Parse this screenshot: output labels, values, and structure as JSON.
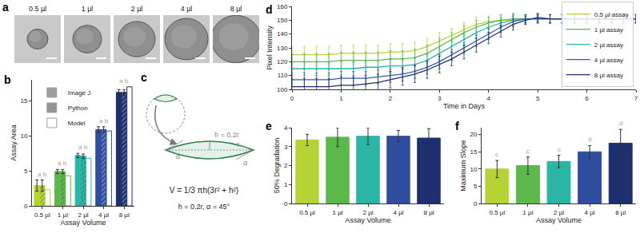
{
  "images": {
    "title": "a",
    "labels": [
      "0.5 µl",
      "1 µl",
      "2 µl",
      "4 µl",
      "8 µl"
    ]
  },
  "diagram": {
    "title": "c",
    "labels": {
      "height": "h = 0.2r",
      "radius": "r",
      "angle": "α"
    },
    "formula": "V = 1/3 πh(3r² + h²)",
    "caption": "h = 0.2r, α = 45°"
  },
  "chart_data": [
    {
      "title": "b",
      "type": "bar",
      "categories": [
        "0.5 µl",
        "1 µl",
        "2 µl",
        "4 µl",
        "8 µl"
      ],
      "series": [
        {
          "name": "Image J",
          "color": "#9e9e9e",
          "colors": [
            "#b5d334",
            "#5cb84a",
            "#2ab5a5",
            "#2f4e9e",
            "#1c2f6e"
          ],
          "values": [
            2.9,
            4.9,
            7.2,
            10.9,
            16.2
          ],
          "errors": [
            0.8,
            0.3,
            0.3,
            0.4,
            0.4
          ]
        },
        {
          "name": "Python",
          "color": "#9e9e9e",
          "marker": "hatched",
          "colors": [
            "#b5d334",
            "#5cb84a",
            "#2ab5a5",
            "#2f4e9e",
            "#1c2f6e"
          ],
          "values": [
            2.9,
            4.9,
            7.1,
            10.9,
            16.2
          ],
          "errors": [
            0.8,
            0.3,
            0.3,
            0.4,
            0.4
          ]
        },
        {
          "name": "Model",
          "color": "#9e9e9e",
          "marker": "outline",
          "colors": [
            "#b5d334",
            "#5cb84a",
            "#2ab5a5",
            "#2f4e9e",
            "#1c2f6e"
          ],
          "values": [
            2.3,
            4.3,
            6.8,
            10.7,
            17.0
          ]
        }
      ],
      "annotations": [
        "a b",
        "a b",
        "a b",
        "a b",
        "a b"
      ],
      "x_label": "Assay Volume",
      "y_label": "Assay Area",
      "ylim": [
        0,
        18
      ],
      "yticks": [
        0,
        5,
        10,
        15
      ],
      "legend": "upper left"
    },
    {
      "title": "d",
      "type": "line",
      "x": [
        0,
        0.25,
        0.5,
        0.75,
        1,
        1.25,
        1.5,
        1.75,
        2,
        2.25,
        2.5,
        2.75,
        3,
        3.25,
        3.5,
        3.75,
        4,
        4.25,
        4.5,
        4.75,
        5,
        5.25,
        5.5,
        5.75,
        6,
        6.25,
        6.5,
        6.75,
        7
      ],
      "series": [
        {
          "name": "0.5 µl assay",
          "color": "#b5d334",
          "values": [
            125,
            125,
            125,
            125,
            126,
            126,
            126,
            126,
            127,
            127,
            128,
            131,
            135,
            139,
            143,
            147,
            149,
            150,
            150,
            151,
            151,
            151,
            151,
            151,
            151,
            151,
            151,
            151,
            151
          ],
          "errors": [
            6,
            6,
            6,
            6,
            6,
            6,
            6,
            6,
            6,
            6,
            6,
            6,
            6,
            5,
            5,
            5,
            4,
            4,
            4,
            3,
            3,
            3,
            3,
            3,
            3,
            3,
            3,
            3,
            3
          ]
        },
        {
          "name": "1 µl assay",
          "color": "#5cb84a",
          "values": [
            120,
            120,
            120,
            120,
            121,
            121,
            121,
            121,
            122,
            122,
            123,
            126,
            131,
            136,
            141,
            145,
            148,
            150,
            151,
            151,
            151,
            151,
            151,
            151,
            151,
            151,
            151,
            151,
            151
          ],
          "errors": [
            6,
            6,
            6,
            6,
            6,
            6,
            6,
            6,
            6,
            6,
            6,
            6,
            6,
            5,
            5,
            5,
            4,
            4,
            4,
            3,
            3,
            3,
            3,
            3,
            3,
            3,
            3,
            3,
            3
          ]
        },
        {
          "name": "2 µl assay",
          "color": "#2ab5a5",
          "values": [
            115,
            115,
            115,
            115,
            115,
            115,
            116,
            116,
            117,
            117,
            118,
            121,
            126,
            131,
            136,
            141,
            145,
            148,
            150,
            151,
            151,
            151,
            151,
            151,
            151,
            151,
            151,
            151,
            151
          ],
          "errors": [
            5,
            5,
            5,
            5,
            5,
            5,
            5,
            5,
            5,
            5,
            5,
            5,
            5,
            4,
            4,
            4,
            4,
            4,
            4,
            3,
            3,
            3,
            3,
            3,
            3,
            3,
            3,
            3,
            3
          ]
        },
        {
          "name": "4 µl assay",
          "color": "#3a5ca8",
          "values": [
            107,
            107,
            107,
            107,
            108,
            108,
            108,
            109,
            110,
            111,
            113,
            116,
            120,
            125,
            130,
            135,
            140,
            145,
            149,
            151,
            151,
            151,
            151,
            151,
            151,
            151,
            151,
            151,
            151
          ],
          "errors": [
            5,
            5,
            5,
            5,
            5,
            5,
            5,
            5,
            5,
            5,
            5,
            5,
            5,
            4,
            4,
            4,
            4,
            4,
            4,
            3,
            3,
            3,
            3,
            3,
            3,
            3,
            3,
            3,
            3
          ]
        },
        {
          "name": "8 µl assay",
          "color": "#1c2f6e",
          "values": [
            102,
            102,
            102,
            102,
            103,
            103,
            104,
            105,
            107,
            109,
            111,
            114,
            118,
            122,
            127,
            132,
            137,
            142,
            147,
            150,
            152,
            151,
            151,
            151,
            151,
            151,
            151,
            151,
            151
          ],
          "errors": [
            6,
            6,
            6,
            6,
            6,
            6,
            6,
            6,
            6,
            6,
            6,
            6,
            6,
            5,
            5,
            5,
            4,
            4,
            4,
            3,
            3,
            3,
            3,
            3,
            3,
            3,
            3,
            3,
            3
          ]
        }
      ],
      "x_label": "Time in Days",
      "y_label": "Pixel Intensity",
      "xlim": [
        0,
        7
      ],
      "xticks": [
        0,
        1,
        2,
        3,
        4,
        5,
        6,
        7
      ],
      "ylim": [
        100,
        160
      ],
      "yticks": [
        100,
        110,
        120,
        130,
        140,
        150,
        160
      ],
      "legend": "lower right"
    },
    {
      "title": "e",
      "type": "bar",
      "categories": [
        "0.5 µl",
        "1 µl",
        "2 µl",
        "4 µl",
        "8 µl"
      ],
      "values": [
        3.35,
        3.5,
        3.55,
        3.55,
        3.45
      ],
      "errors": [
        0.3,
        0.5,
        0.45,
        0.3,
        0.5
      ],
      "colors": [
        "#b5d334",
        "#5cb84a",
        "#2ab5a5",
        "#2f4e9e",
        "#1c2f6e"
      ],
      "x_label": "Assay Volume",
      "y_label": "50% Degradation",
      "ylim": [
        0,
        4
      ],
      "yticks": [
        0,
        1,
        2,
        3,
        4
      ]
    },
    {
      "title": "f",
      "type": "bar",
      "categories": [
        "0.5 µl",
        "1 µl",
        "2 µl",
        "4 µl",
        "8 µl"
      ],
      "values": [
        10,
        11,
        12.2,
        15,
        17.5
      ],
      "errors": [
        2.5,
        2.5,
        1.8,
        1.8,
        4
      ],
      "colors": [
        "#b5d334",
        "#5cb84a",
        "#2ab5a5",
        "#2f4e9e",
        "#1c2f6e"
      ],
      "annotations": [
        "c",
        "c",
        "c",
        "d",
        "d"
      ],
      "x_label": "Assay Volume",
      "y_label": "Maximum Slope",
      "ylim": [
        0,
        22
      ],
      "yticks": [
        0,
        5,
        10,
        15,
        20
      ]
    }
  ]
}
